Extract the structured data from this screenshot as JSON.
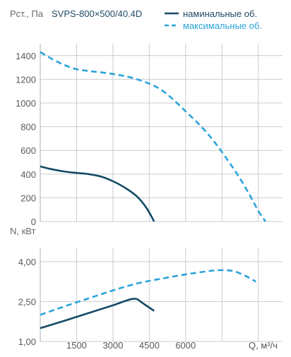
{
  "model_label": "SVPS-800×500/40.4D",
  "colors": {
    "nominal": "#134a66",
    "maximal": "#2aa3da",
    "grid": "#c9cccf"
  },
  "chart_data": [
    {
      "type": "line",
      "ylabel": "Pст., Па",
      "xlim": [
        0,
        10000
      ],
      "ylim": [
        0,
        1500
      ],
      "yticks": [
        0,
        200,
        400,
        600,
        800,
        1000,
        1200,
        1400
      ],
      "xgrid": [
        1500,
        3000,
        4500,
        6000,
        7500,
        9000
      ],
      "grid": true,
      "legend_position": "top-right",
      "series": [
        {
          "name": "наминальные об.",
          "style": "solid",
          "color": "#134a66",
          "x": [
            0,
            500,
            1000,
            1500,
            2000,
            2500,
            3000,
            3500,
            4000,
            4400,
            4700
          ],
          "y": [
            465,
            440,
            422,
            410,
            400,
            380,
            340,
            285,
            210,
            110,
            0
          ]
        },
        {
          "name": "максимальные об.",
          "style": "dashed",
          "color": "#2aa3da",
          "x": [
            0,
            500,
            1000,
            1500,
            2000,
            3000,
            4000,
            5000,
            6000,
            7000,
            8000,
            8600,
            9000,
            9300
          ],
          "y": [
            1430,
            1370,
            1320,
            1285,
            1270,
            1245,
            1200,
            1110,
            930,
            720,
            440,
            240,
            90,
            0
          ]
        }
      ]
    },
    {
      "type": "line",
      "ylabel": "N, кВт",
      "xlabel": "Q, м³/ч",
      "xlim": [
        0,
        10000
      ],
      "ylim": [
        1.0,
        4.5
      ],
      "ytick_labels": [
        "1,00",
        "2,50",
        "4,00"
      ],
      "yticks": [
        1.0,
        2.5,
        4.0
      ],
      "xticks": [
        1500,
        3000,
        4500,
        6000
      ],
      "xtick_labels": [
        "1500",
        "3000",
        "4500",
        "6000"
      ],
      "xgrid": [
        1500,
        3000,
        4500,
        6000,
        7500,
        9000
      ],
      "grid": true,
      "series": [
        {
          "name": "наминальные об.",
          "style": "solid",
          "color": "#134a66",
          "x": [
            0,
            1000,
            2000,
            3000,
            3500,
            3800,
            4000,
            4200,
            4700
          ],
          "y": [
            1.5,
            1.78,
            2.07,
            2.36,
            2.52,
            2.6,
            2.59,
            2.46,
            2.15
          ]
        },
        {
          "name": "максимальные об.",
          "style": "dashed",
          "color": "#2aa3da",
          "x": [
            0,
            1000,
            2000,
            3000,
            4000,
            5000,
            6000,
            7000,
            7500,
            8000,
            8500,
            8900
          ],
          "y": [
            2.0,
            2.32,
            2.62,
            2.92,
            3.18,
            3.36,
            3.52,
            3.65,
            3.68,
            3.64,
            3.45,
            3.25
          ]
        }
      ]
    }
  ]
}
